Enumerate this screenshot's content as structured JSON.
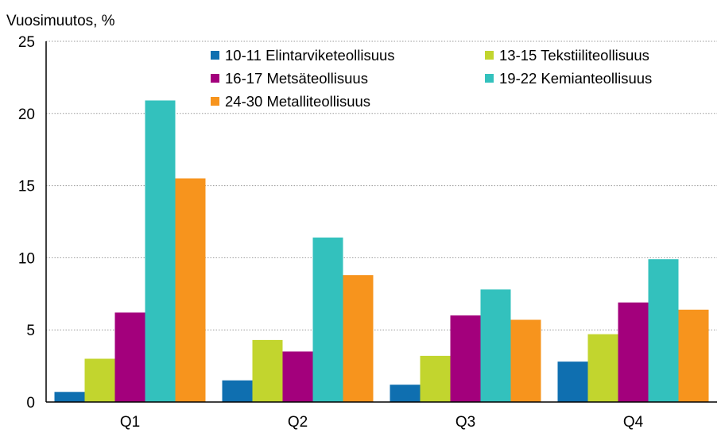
{
  "chart_data": {
    "type": "bar",
    "ylabel": "Vuosimuutos, %",
    "ylim": [
      0,
      25
    ],
    "yticks": [
      "0",
      "5",
      "10",
      "15",
      "20",
      "25"
    ],
    "categories": [
      "Q1",
      "Q2",
      "Q3",
      "Q4"
    ],
    "grid": "horizontal dotted",
    "legend_position": "top-right",
    "series": [
      {
        "name": "10-11 Elintarviketeollisuus",
        "color": "#0f6fb0",
        "values": [
          0.7,
          1.5,
          1.2,
          2.8
        ]
      },
      {
        "name": "13-15 Tekstiiliteollisuus",
        "color": "#c2d52e",
        "values": [
          3.0,
          4.3,
          3.2,
          4.7
        ]
      },
      {
        "name": "16-17 Metsäteollisuus",
        "color": "#a3007c",
        "values": [
          6.2,
          3.5,
          6.0,
          6.9
        ]
      },
      {
        "name": "19-22 Kemianteollisuus",
        "color": "#33c1bd",
        "values": [
          20.9,
          11.4,
          7.8,
          9.9
        ]
      },
      {
        "name": "24-30 Metalliteollisuus",
        "color": "#f7941d",
        "values": [
          15.5,
          8.8,
          5.7,
          6.4
        ]
      }
    ]
  }
}
